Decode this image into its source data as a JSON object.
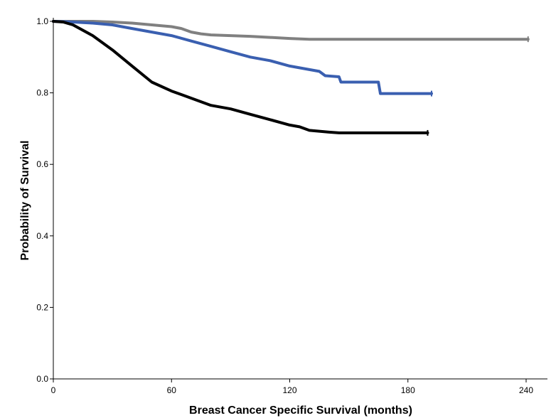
{
  "chart_data": {
    "type": "line",
    "subtype": "kaplan-meier step curves",
    "xlabel": "Breast Cancer Specific Survival (months)",
    "ylabel": "Probability of Survival",
    "xlim": [
      0,
      240
    ],
    "ylim": [
      0.0,
      1.0
    ],
    "xticks": [
      0,
      60,
      120,
      180,
      240
    ],
    "yticks": [
      0.0,
      0.2,
      0.4,
      0.6,
      0.8,
      1.0
    ],
    "x_tick_labels": [
      "0",
      "60",
      "120",
      "180",
      "240"
    ],
    "y_tick_labels": [
      "0.0",
      "0.2",
      "0.4",
      "0.6",
      "0.8",
      "1.0"
    ],
    "grid": false,
    "legend": "none",
    "series": [
      {
        "color": "#808080",
        "points": [
          [
            0,
            1.0
          ],
          [
            10,
            1.0
          ],
          [
            20,
            1.0
          ],
          [
            30,
            0.998
          ],
          [
            40,
            0.995
          ],
          [
            50,
            0.99
          ],
          [
            60,
            0.985
          ],
          [
            65,
            0.98
          ],
          [
            70,
            0.97
          ],
          [
            75,
            0.965
          ],
          [
            80,
            0.962
          ],
          [
            90,
            0.96
          ],
          [
            100,
            0.958
          ],
          [
            110,
            0.955
          ],
          [
            120,
            0.952
          ],
          [
            130,
            0.95
          ],
          [
            140,
            0.95
          ],
          [
            160,
            0.95
          ],
          [
            190,
            0.95
          ],
          [
            220,
            0.95
          ],
          [
            241,
            0.95
          ]
        ]
      },
      {
        "color": "#3a5fb0",
        "points": [
          [
            0,
            1.0
          ],
          [
            10,
            0.998
          ],
          [
            20,
            0.995
          ],
          [
            30,
            0.99
          ],
          [
            40,
            0.98
          ],
          [
            50,
            0.97
          ],
          [
            60,
            0.96
          ],
          [
            70,
            0.945
          ],
          [
            80,
            0.93
          ],
          [
            90,
            0.915
          ],
          [
            100,
            0.9
          ],
          [
            110,
            0.89
          ],
          [
            120,
            0.875
          ],
          [
            130,
            0.865
          ],
          [
            135,
            0.86
          ],
          [
            138,
            0.848
          ],
          [
            145,
            0.845
          ],
          [
            146,
            0.83
          ],
          [
            165,
            0.83
          ],
          [
            166,
            0.798
          ],
          [
            192,
            0.798
          ]
        ]
      },
      {
        "color": "#000000",
        "points": [
          [
            0,
            1.0
          ],
          [
            5,
            0.998
          ],
          [
            10,
            0.99
          ],
          [
            20,
            0.96
          ],
          [
            30,
            0.92
          ],
          [
            40,
            0.875
          ],
          [
            50,
            0.83
          ],
          [
            60,
            0.805
          ],
          [
            70,
            0.785
          ],
          [
            80,
            0.765
          ],
          [
            90,
            0.755
          ],
          [
            100,
            0.74
          ],
          [
            110,
            0.725
          ],
          [
            120,
            0.71
          ],
          [
            125,
            0.705
          ],
          [
            130,
            0.695
          ],
          [
            140,
            0.69
          ],
          [
            145,
            0.688
          ],
          [
            160,
            0.688
          ],
          [
            175,
            0.688
          ],
          [
            190,
            0.688
          ]
        ]
      }
    ]
  }
}
